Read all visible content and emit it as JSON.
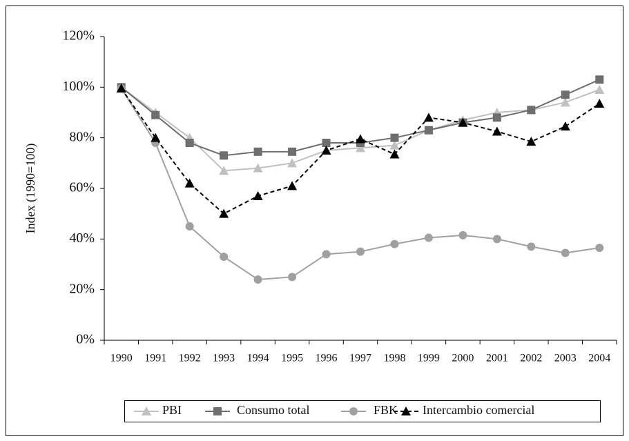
{
  "chart_data": {
    "type": "line",
    "y_label": "Index (1990=100)",
    "categories": [
      "1990",
      "1991",
      "1992",
      "1993",
      "1994",
      "1995",
      "1996",
      "1997",
      "1998",
      "1999",
      "2000",
      "2001",
      "2002",
      "2003",
      "2004"
    ],
    "series": [
      {
        "name": "PBI",
        "color": "#c0c0c0",
        "marker": "triangle",
        "dash": false,
        "values": [
          100,
          90,
          80,
          67,
          68,
          70,
          75,
          76,
          77,
          83,
          87,
          90,
          91,
          94,
          99
        ]
      },
      {
        "name": "Consumo total",
        "color": "#6e6e6e",
        "marker": "square",
        "dash": false,
        "values": [
          100,
          89,
          78,
          73,
          74.5,
          74.5,
          78,
          78,
          80,
          83,
          86,
          88,
          91,
          97,
          103
        ]
      },
      {
        "name": "FBK",
        "color": "#a0a0a0",
        "marker": "circle",
        "dash": false,
        "values": [
          99.5,
          78,
          45,
          33,
          24,
          25,
          34,
          35,
          38,
          40.5,
          41.5,
          40,
          37,
          34.5,
          36.5
        ]
      },
      {
        "name": "Intercambio comercial",
        "color": "#000000",
        "marker": "triangle",
        "dash": true,
        "values": [
          99.5,
          80,
          62,
          50,
          57,
          61,
          75,
          79.5,
          73.5,
          88,
          86,
          82.5,
          78.5,
          84.5,
          93.5
        ]
      }
    ],
    "ylim": [
      0,
      120
    ],
    "yticks": [
      {
        "value": 0,
        "label": "0%"
      },
      {
        "value": 20,
        "label": "20%"
      },
      {
        "value": 40,
        "label": "40%"
      },
      {
        "value": 60,
        "label": "60%"
      },
      {
        "value": 80,
        "label": "80%"
      },
      {
        "value": 100,
        "label": "100%"
      },
      {
        "value": 120,
        "label": "120%"
      }
    ],
    "grid": false
  }
}
